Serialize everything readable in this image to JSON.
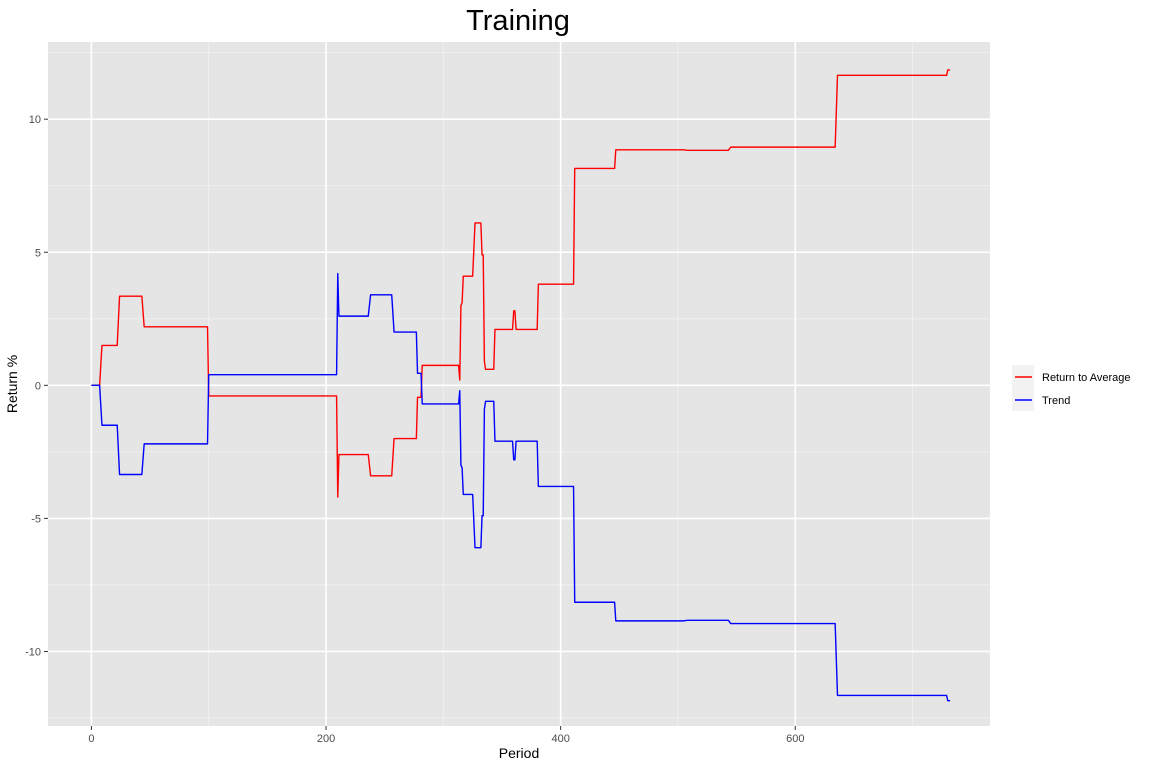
{
  "chart_data": {
    "type": "line",
    "title": "Training",
    "xlabel": "Period",
    "ylabel": "Return %",
    "xlim": [
      -37,
      766
    ],
    "ylim": [
      -12.8,
      12.9
    ],
    "x_ticks": [
      0,
      200,
      400,
      600
    ],
    "y_ticks": [
      -10,
      -5,
      0,
      5,
      10
    ],
    "grid": true,
    "legend_position": "right",
    "series": [
      {
        "name": "Return to Average",
        "color": "#ff0000",
        "points": [
          [
            0,
            0
          ],
          [
            7,
            0
          ],
          [
            9,
            1.5
          ],
          [
            22,
            1.5
          ],
          [
            24,
            3.35
          ],
          [
            43,
            3.35
          ],
          [
            45,
            2.2
          ],
          [
            99,
            2.2
          ],
          [
            100,
            -0.4
          ],
          [
            209,
            -0.4
          ],
          [
            210,
            -4.2
          ],
          [
            211,
            -2.6
          ],
          [
            212,
            -2.6
          ],
          [
            236,
            -2.6
          ],
          [
            238,
            -3.4
          ],
          [
            256,
            -3.4
          ],
          [
            258,
            -2.0
          ],
          [
            277,
            -2.0
          ],
          [
            278,
            -0.45
          ],
          [
            281,
            -0.45
          ],
          [
            282,
            0.75
          ],
          [
            313,
            0.75
          ],
          [
            314,
            0.2
          ],
          [
            315,
            3.0
          ],
          [
            316,
            3.1
          ],
          [
            317,
            4.1
          ],
          [
            325,
            4.1
          ],
          [
            327,
            6.1
          ],
          [
            332,
            6.1
          ],
          [
            333,
            4.9
          ],
          [
            334,
            4.9
          ],
          [
            335,
            0.9
          ],
          [
            336,
            0.6
          ],
          [
            343,
            0.6
          ],
          [
            344,
            2.1
          ],
          [
            359,
            2.1
          ],
          [
            360,
            2.8
          ],
          [
            361,
            2.8
          ],
          [
            362,
            2.1
          ],
          [
            380,
            2.1
          ],
          [
            381,
            3.8
          ],
          [
            411,
            3.8
          ],
          [
            412,
            8.15
          ],
          [
            446,
            8.15
          ],
          [
            447,
            8.85
          ],
          [
            505,
            8.85
          ],
          [
            508,
            8.83
          ],
          [
            543,
            8.83
          ],
          [
            545,
            8.95
          ],
          [
            634,
            8.95
          ],
          [
            636,
            11.65
          ],
          [
            729,
            11.65
          ],
          [
            730,
            11.85
          ],
          [
            732,
            11.85
          ]
        ]
      },
      {
        "name": "Trend",
        "color": "#0000ff",
        "points": [
          [
            0,
            0
          ],
          [
            7,
            0
          ],
          [
            9,
            -1.5
          ],
          [
            22,
            -1.5
          ],
          [
            24,
            -3.35
          ],
          [
            43,
            -3.35
          ],
          [
            45,
            -2.2
          ],
          [
            99,
            -2.2
          ],
          [
            100,
            0.4
          ],
          [
            209,
            0.4
          ],
          [
            210,
            4.2
          ],
          [
            211,
            2.6
          ],
          [
            212,
            2.6
          ],
          [
            236,
            2.6
          ],
          [
            238,
            3.4
          ],
          [
            256,
            3.4
          ],
          [
            258,
            2.0
          ],
          [
            277,
            2.0
          ],
          [
            278,
            0.45
          ],
          [
            281,
            0.45
          ],
          [
            282,
            -0.7
          ],
          [
            313,
            -0.7
          ],
          [
            314,
            -0.2
          ],
          [
            315,
            -3.0
          ],
          [
            316,
            -3.1
          ],
          [
            317,
            -4.1
          ],
          [
            325,
            -4.1
          ],
          [
            327,
            -6.1
          ],
          [
            332,
            -6.1
          ],
          [
            333,
            -4.9
          ],
          [
            334,
            -4.9
          ],
          [
            335,
            -0.9
          ],
          [
            336,
            -0.6
          ],
          [
            343,
            -0.6
          ],
          [
            344,
            -2.1
          ],
          [
            359,
            -2.1
          ],
          [
            360,
            -2.8
          ],
          [
            361,
            -2.8
          ],
          [
            362,
            -2.1
          ],
          [
            380,
            -2.1
          ],
          [
            381,
            -3.8
          ],
          [
            411,
            -3.8
          ],
          [
            412,
            -8.15
          ],
          [
            446,
            -8.15
          ],
          [
            447,
            -8.85
          ],
          [
            505,
            -8.85
          ],
          [
            508,
            -8.83
          ],
          [
            543,
            -8.83
          ],
          [
            545,
            -8.95
          ],
          [
            634,
            -8.95
          ],
          [
            636,
            -11.65
          ],
          [
            729,
            -11.65
          ],
          [
            730,
            -11.85
          ],
          [
            732,
            -11.85
          ]
        ]
      }
    ]
  }
}
